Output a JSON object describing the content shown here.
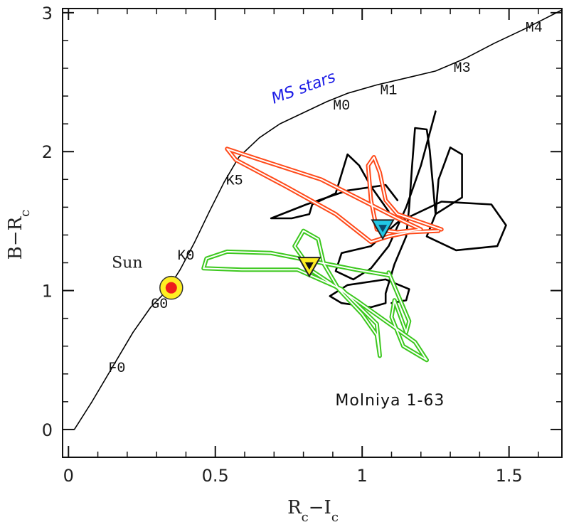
{
  "chart_data": {
    "type": "line",
    "xlabel": [
      {
        "text": "R"
      },
      {
        "text": "c",
        "sub": true
      },
      {
        "text": "−I"
      },
      {
        "text": "c",
        "sub": true
      }
    ],
    "ylabel": [
      {
        "text": "B−R"
      },
      {
        "text": "c",
        "sub": true
      }
    ],
    "xlim": [
      -0.02,
      1.68
    ],
    "ylim": [
      -0.2,
      3.03
    ],
    "xticks": [
      0,
      0.5,
      1,
      1.5
    ],
    "yticks": [
      0,
      1,
      2,
      3
    ],
    "xminorticks": [
      0.1,
      0.2,
      0.3,
      0.4,
      0.6,
      0.7,
      0.8,
      0.9,
      1.1,
      1.2,
      1.3,
      1.4,
      1.6
    ],
    "yminorticks": [
      -0.2,
      0.2,
      0.4,
      0.6,
      0.8,
      1.2,
      1.4,
      1.6,
      1.8,
      2.2,
      2.4,
      2.6,
      2.8
    ],
    "series": [
      {
        "color": "#000000",
        "style": "single",
        "x": [
          0.02,
          0.08,
          0.15,
          0.22,
          0.28,
          0.335,
          0.38,
          0.43,
          0.48,
          0.53,
          0.58,
          0.65,
          0.72,
          0.8,
          0.88,
          0.95,
          1.05,
          1.15,
          1.25,
          1.35,
          1.45,
          1.55,
          1.68
        ],
        "y": [
          0.0,
          0.2,
          0.45,
          0.7,
          0.88,
          1.0,
          1.15,
          1.35,
          1.57,
          1.78,
          1.96,
          2.1,
          2.2,
          2.28,
          2.36,
          2.42,
          2.48,
          2.53,
          2.58,
          2.67,
          2.78,
          2.88,
          3.02
        ]
      },
      {
        "color": "#000000",
        "style": "thick",
        "x": [
          1.25,
          1.2,
          1.15,
          1.09,
          1.03,
          0.97,
          0.91,
          0.93,
          1.03,
          1.12,
          1.27,
          1.44,
          1.49,
          1.46,
          1.32,
          1.22,
          1.25,
          1.34,
          1.34,
          1.3,
          1.26,
          1.25,
          1.23,
          1.22,
          1.18,
          1.17,
          1.16,
          1.15,
          1.11,
          1.08,
          1.08,
          1.03,
          0.93,
          0.89,
          0.95,
          1.08,
          1.16,
          1.15,
          1.1,
          null,
          1.12,
          1.08,
          0.95,
          0.81,
          0.69,
          0.76,
          0.82,
          0.83,
          0.91,
          0.95,
          0.99,
          1.03,
          1.09
        ],
        "y": [
          2.29,
          1.9,
          1.6,
          1.32,
          1.16,
          1.08,
          1.14,
          1.27,
          1.32,
          1.49,
          1.64,
          1.62,
          1.47,
          1.32,
          1.29,
          1.39,
          1.55,
          1.67,
          1.98,
          2.03,
          1.8,
          1.55,
          2.01,
          2.16,
          2.17,
          1.9,
          1.6,
          1.39,
          1.19,
          0.98,
          0.91,
          0.88,
          0.91,
          0.96,
          1.04,
          1.08,
          1.01,
          0.93,
          0.91,
          null,
          1.65,
          1.76,
          1.72,
          1.62,
          1.52,
          1.52,
          1.55,
          1.62,
          1.7,
          1.98,
          1.9,
          1.75,
          1.57
        ]
      },
      {
        "color": "#ff4a1a",
        "style": "double",
        "x": [
          1.27,
          1.12,
          1.08,
          1.06,
          1.04,
          1.02,
          1.03,
          1.05,
          1.12,
          1.2,
          1.12,
          0.86,
          0.64,
          0.54,
          0.57,
          0.74,
          0.91,
          1.03,
          1.09,
          1.16,
          1.26
        ],
        "y": [
          1.44,
          1.55,
          1.65,
          1.85,
          1.96,
          1.9,
          1.65,
          1.44,
          1.42,
          1.44,
          1.52,
          1.8,
          1.95,
          2.02,
          1.94,
          1.75,
          1.55,
          1.35,
          1.39,
          1.42,
          1.43
        ]
      },
      {
        "color": "#3cc81e",
        "style": "double",
        "x": [
          1.09,
          1.16,
          1.15,
          1.11,
          1.1,
          1.14,
          1.22,
          1.18,
          0.98,
          0.83,
          0.77,
          0.8,
          0.85,
          0.87,
          0.92,
          1.0,
          1.05,
          1.06,
          1.05,
          0.93,
          0.78,
          0.59,
          0.46,
          0.47,
          0.54,
          0.69,
          0.86,
          0.98,
          1.09
        ],
        "y": [
          1.13,
          0.78,
          0.7,
          0.93,
          0.81,
          0.6,
          0.5,
          0.63,
          0.93,
          1.14,
          1.32,
          1.43,
          1.37,
          1.19,
          1.01,
          0.83,
          0.68,
          0.53,
          0.76,
          1.01,
          1.15,
          1.15,
          1.16,
          1.23,
          1.28,
          1.27,
          1.2,
          1.15,
          1.11
        ]
      }
    ],
    "points": [
      {
        "x": 0.35,
        "y": 1.02,
        "marker": "circle",
        "color": "#ffee22",
        "inner": "#ee1c1c"
      },
      {
        "x": 0.82,
        "y": 1.18,
        "marker": "triangle-down",
        "color": "#ffee22",
        "inner": "#111111"
      },
      {
        "x": 1.07,
        "y": 1.45,
        "marker": "triangle-down",
        "color": "#22c8e6",
        "inner": "#0a4a6e"
      }
    ],
    "annotations": [
      {
        "text": "F0",
        "x": 0.165,
        "y": 0.45
      },
      {
        "text": "G0",
        "x": 0.31,
        "y": 0.91
      },
      {
        "text": "K0",
        "x": 0.4,
        "y": 1.26
      },
      {
        "text": "K5",
        "x": 0.565,
        "y": 1.8
      },
      {
        "text": "M0",
        "x": 0.93,
        "y": 2.34
      },
      {
        "text": "M1",
        "x": 1.09,
        "y": 2.45
      },
      {
        "text": "M3",
        "x": 1.34,
        "y": 2.61
      },
      {
        "text": "M4",
        "x": 1.585,
        "y": 2.9
      },
      {
        "text": "Sun",
        "x": 0.2,
        "y": 1.2
      },
      {
        "text": "MS stars",
        "x": 0.8,
        "y": 2.46,
        "rotation": -20,
        "color": "#1a1ae6"
      },
      {
        "text": "Molniya 1-63",
        "x": 1.095,
        "y": 0.21
      }
    ]
  }
}
